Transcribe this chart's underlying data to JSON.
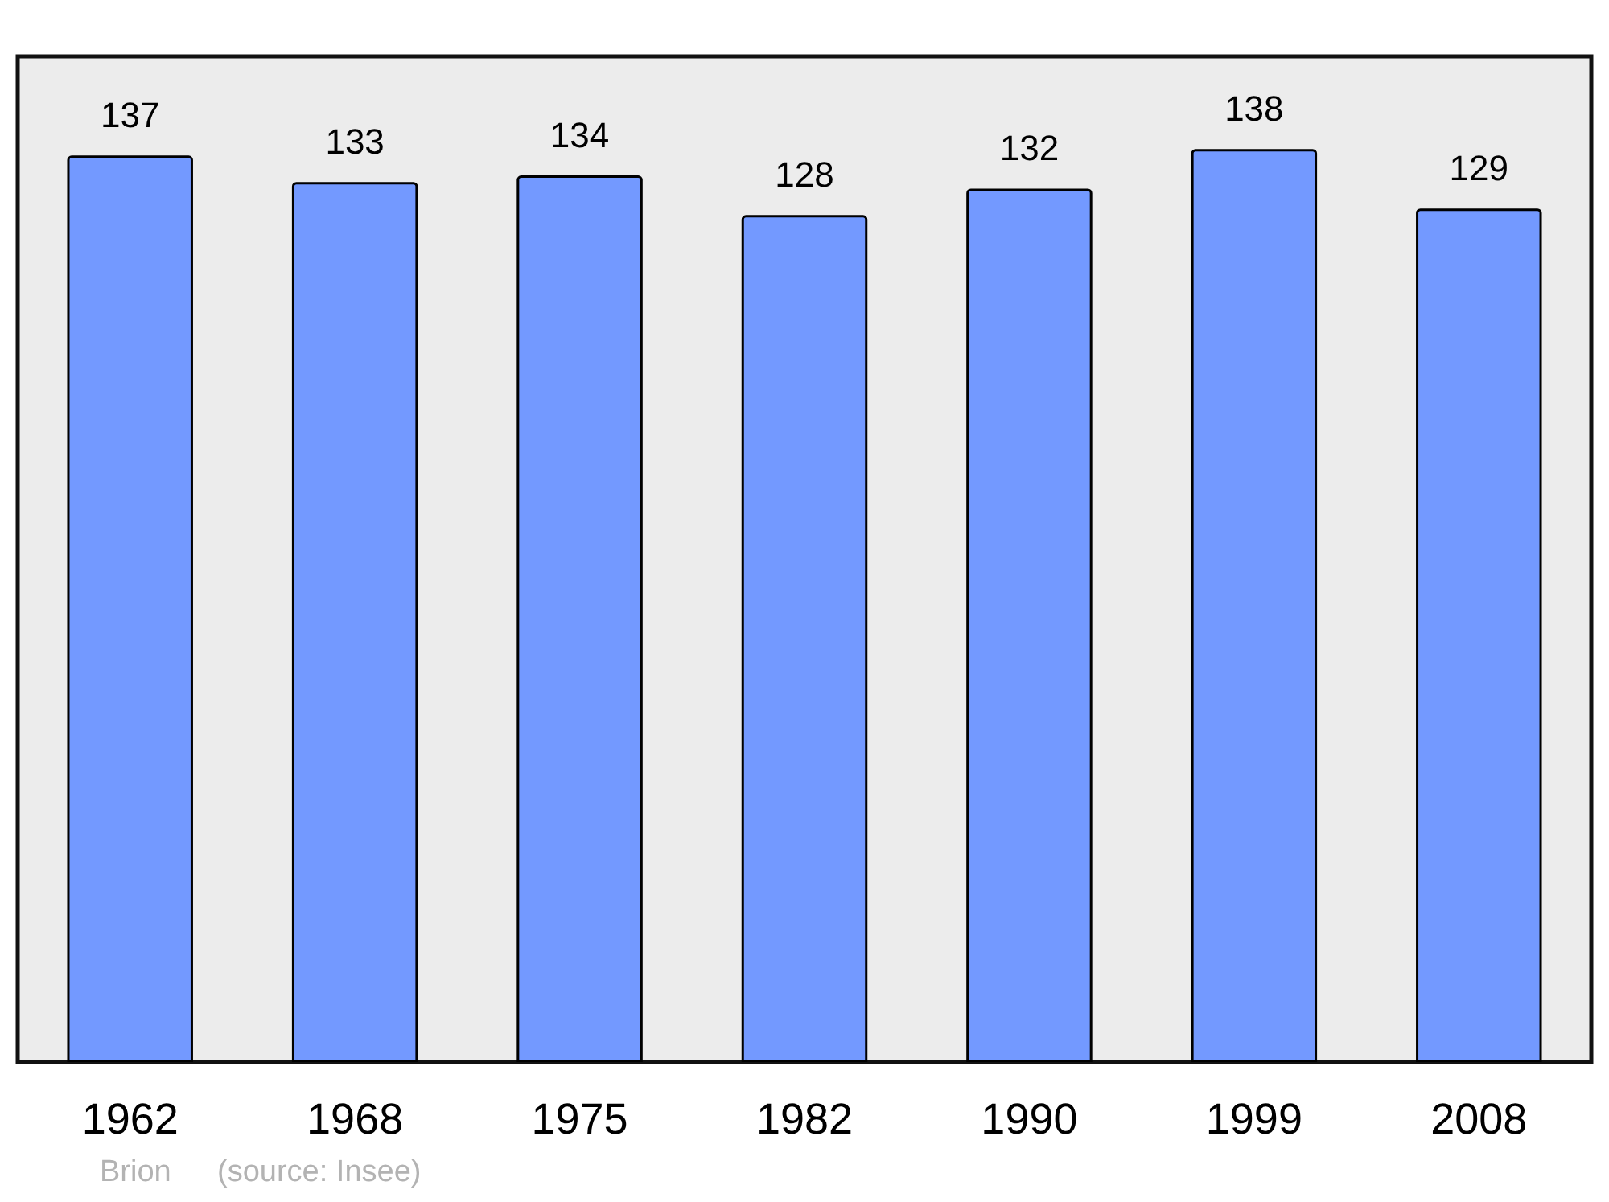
{
  "chart_data": {
    "type": "bar",
    "categories": [
      "1962",
      "1968",
      "1975",
      "1982",
      "1990",
      "1999",
      "2008"
    ],
    "values": [
      137,
      133,
      134,
      128,
      132,
      138,
      129
    ],
    "color": "#7399ff",
    "ylim": [
      0,
      152
    ],
    "data_labels": true,
    "tick_labels": "x",
    "annotations": [
      "Brion",
      "(source: Insee)"
    ]
  }
}
